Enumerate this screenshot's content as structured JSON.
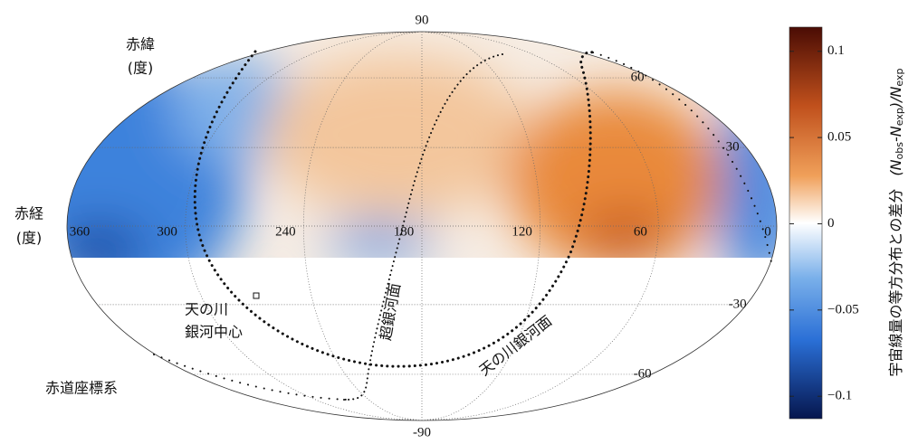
{
  "chart_data": {
    "type": "skymap",
    "projection": "mollweide",
    "lat_ticks": [
      90,
      60,
      30,
      -30,
      -60,
      -90
    ],
    "lon_ticks": [
      360,
      300,
      240,
      180,
      120,
      60,
      0
    ],
    "annotations": {
      "dec_title": "赤緯",
      "dec_unit": "(度)",
      "ra_title": "赤経",
      "ra_unit": "(度)",
      "gc_1": "天の川",
      "gc_2": "銀河中心",
      "supergalactic": "超銀河面",
      "galactic": "天の川銀河面",
      "system": "赤道座標系"
    },
    "colorbar": {
      "label": "宇宙線量の等方分布との差分",
      "formula": [
        "(N",
        "obs",
        "-N",
        "exp",
        ")/N",
        "exp"
      ],
      "lim": [
        -0.113,
        0.114
      ],
      "ticks": [
        0.1,
        0.05,
        0,
        {
          "value": -0.05,
          "label": "−0.05"
        },
        {
          "value": -0.1,
          "label": "−0.1"
        }
      ]
    }
  }
}
